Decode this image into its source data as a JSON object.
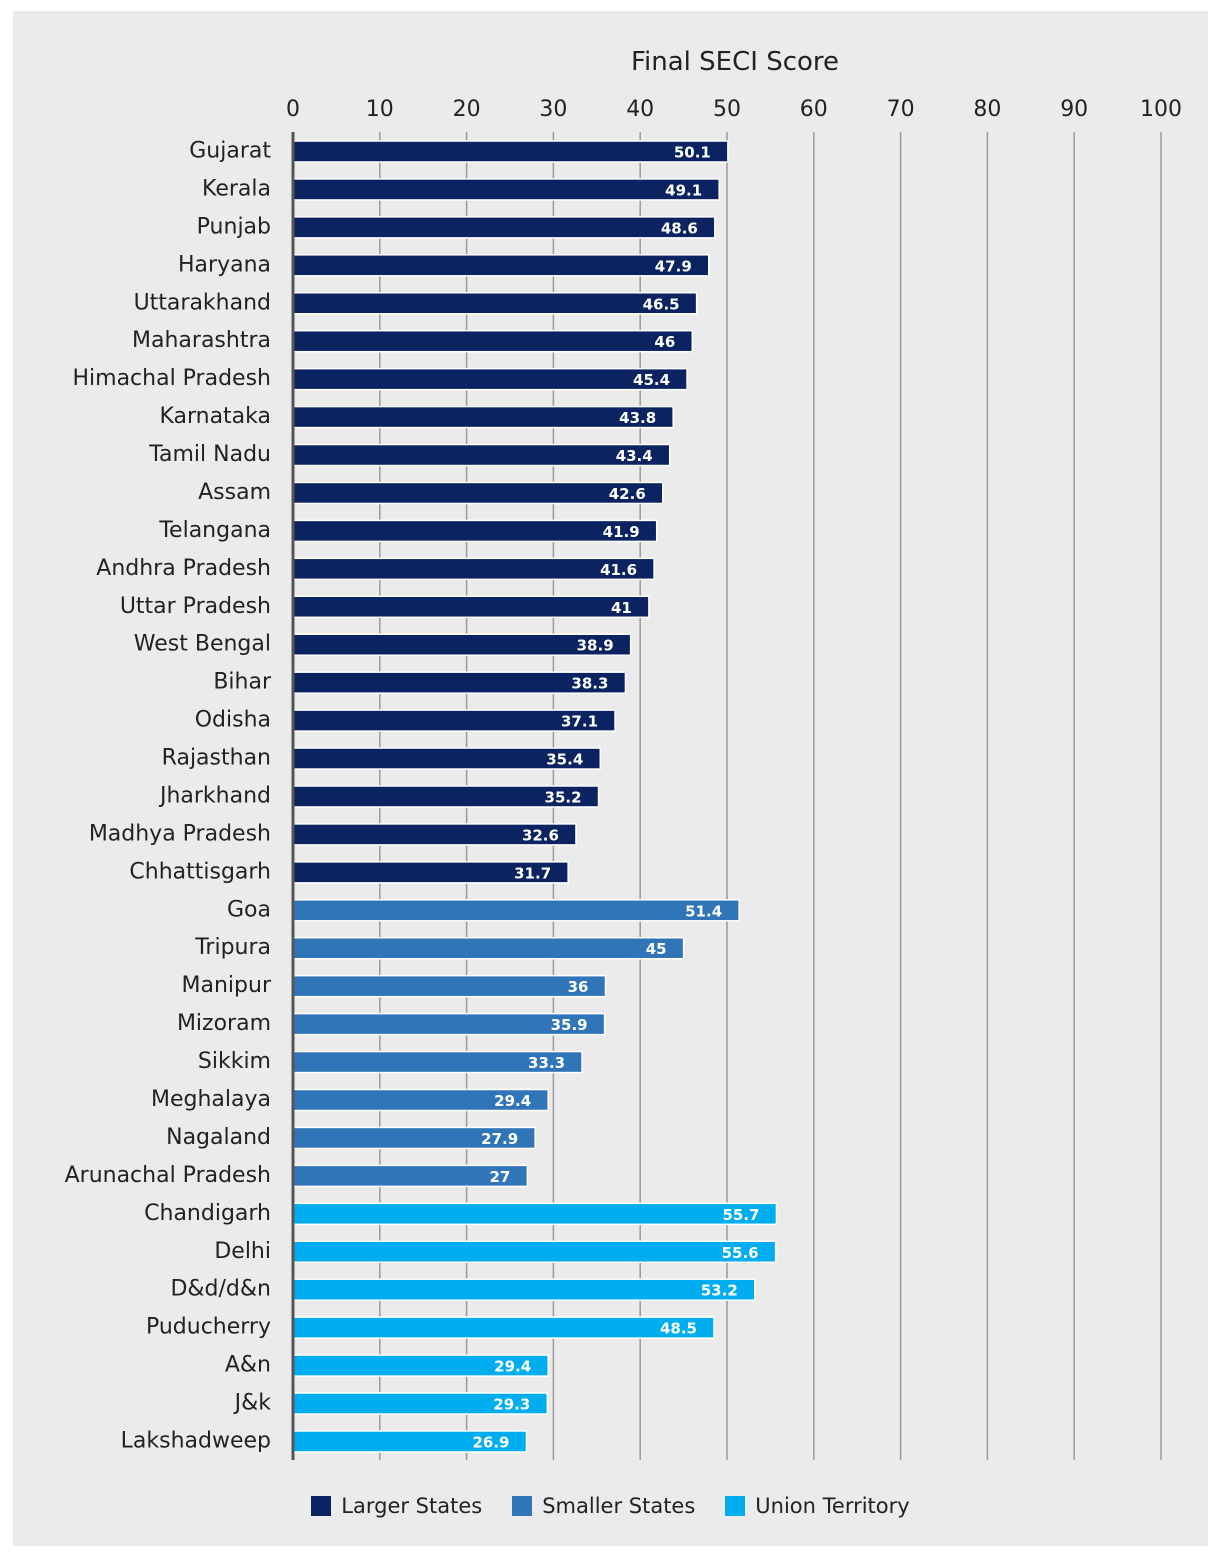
{
  "chart_data": {
    "type": "bar",
    "orientation": "horizontal",
    "title": "Final SECI Score",
    "xlim": [
      0,
      100
    ],
    "xticks": [
      "0",
      "10",
      "20",
      "30",
      "40",
      "50",
      "60",
      "70",
      "80",
      "90",
      "100"
    ],
    "grid": true,
    "legend_position": "bottom",
    "series": [
      {
        "name": "Larger States",
        "color": "#0b2360"
      },
      {
        "name": "Smaller States",
        "color": "#2f75b8"
      },
      {
        "name": "Union Territory",
        "color": "#00aeef"
      }
    ],
    "categories": [
      {
        "label": "Gujarat",
        "value": 50.1,
        "group": 0,
        "value_label": "50.1"
      },
      {
        "label": "Kerala",
        "value": 49.1,
        "group": 0,
        "value_label": "49.1"
      },
      {
        "label": "Punjab",
        "value": 48.6,
        "group": 0,
        "value_label": "48.6"
      },
      {
        "label": "Haryana",
        "value": 47.9,
        "group": 0,
        "value_label": "47.9"
      },
      {
        "label": "Uttarakhand",
        "value": 46.5,
        "group": 0,
        "value_label": "46.5"
      },
      {
        "label": "Maharashtra",
        "value": 46,
        "group": 0,
        "value_label": "46"
      },
      {
        "label": "Himachal Pradesh",
        "value": 45.4,
        "group": 0,
        "value_label": "45.4"
      },
      {
        "label": "Karnataka",
        "value": 43.8,
        "group": 0,
        "value_label": "43.8"
      },
      {
        "label": "Tamil Nadu",
        "value": 43.4,
        "group": 0,
        "value_label": "43.4"
      },
      {
        "label": "Assam",
        "value": 42.6,
        "group": 0,
        "value_label": "42.6"
      },
      {
        "label": "Telangana",
        "value": 41.9,
        "group": 0,
        "value_label": "41.9"
      },
      {
        "label": "Andhra Pradesh",
        "value": 41.6,
        "group": 0,
        "value_label": "41.6"
      },
      {
        "label": "Uttar Pradesh",
        "value": 41,
        "group": 0,
        "value_label": "41"
      },
      {
        "label": "West Bengal",
        "value": 38.9,
        "group": 0,
        "value_label": "38.9"
      },
      {
        "label": "Bihar",
        "value": 38.3,
        "group": 0,
        "value_label": "38.3"
      },
      {
        "label": "Odisha",
        "value": 37.1,
        "group": 0,
        "value_label": "37.1"
      },
      {
        "label": "Rajasthan",
        "value": 35.4,
        "group": 0,
        "value_label": "35.4"
      },
      {
        "label": "Jharkhand",
        "value": 35.2,
        "group": 0,
        "value_label": "35.2"
      },
      {
        "label": "Madhya Pradesh",
        "value": 32.6,
        "group": 0,
        "value_label": "32.6"
      },
      {
        "label": "Chhattisgarh",
        "value": 31.7,
        "group": 0,
        "value_label": "31.7"
      },
      {
        "label": "Goa",
        "value": 51.4,
        "group": 1,
        "value_label": "51.4"
      },
      {
        "label": "Tripura",
        "value": 45,
        "group": 1,
        "value_label": "45"
      },
      {
        "label": "Manipur",
        "value": 36,
        "group": 1,
        "value_label": "36"
      },
      {
        "label": "Mizoram",
        "value": 35.9,
        "group": 1,
        "value_label": "35.9"
      },
      {
        "label": "Sikkim",
        "value": 33.3,
        "group": 1,
        "value_label": "33.3"
      },
      {
        "label": "Meghalaya",
        "value": 29.4,
        "group": 1,
        "value_label": "29.4"
      },
      {
        "label": "Nagaland",
        "value": 27.9,
        "group": 1,
        "value_label": "27.9"
      },
      {
        "label": "Arunachal Pradesh",
        "value": 27,
        "group": 1,
        "value_label": "27"
      },
      {
        "label": "Chandigarh",
        "value": 55.7,
        "group": 2,
        "value_label": "55.7"
      },
      {
        "label": "Delhi",
        "value": 55.6,
        "group": 2,
        "value_label": "55.6"
      },
      {
        "label": "D&d/d&n",
        "value": 53.2,
        "group": 2,
        "value_label": "53.2"
      },
      {
        "label": "Puducherry",
        "value": 48.5,
        "group": 2,
        "value_label": "48.5"
      },
      {
        "label": "A&n",
        "value": 29.4,
        "group": 2,
        "value_label": "29.4"
      },
      {
        "label": "J&k",
        "value": 29.3,
        "group": 2,
        "value_label": "29.3"
      },
      {
        "label": "Lakshadweep",
        "value": 26.9,
        "group": 2,
        "value_label": "26.9"
      }
    ]
  }
}
